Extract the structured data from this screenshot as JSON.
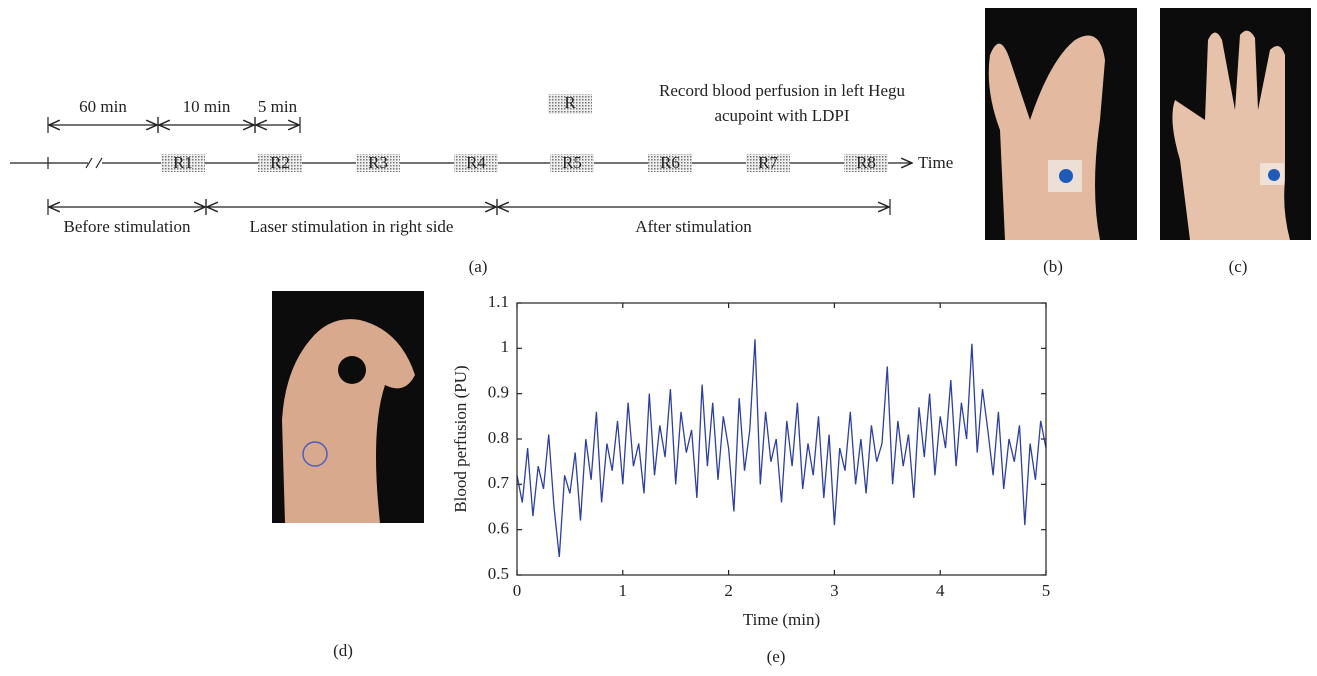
{
  "diagram": {
    "durations": [
      "60 min",
      "10 min",
      "5 min"
    ],
    "markers": [
      "R1",
      "R2",
      "R3",
      "R4",
      "R5",
      "R6",
      "R7",
      "R8"
    ],
    "time_label": "Time",
    "legend": {
      "symbol": "R",
      "text": [
        "Record blood perfusion in left Hegu",
        "acupoint with LDPI"
      ]
    },
    "phases": [
      "Before stimulation",
      "Laser stimulation in right side",
      "After stimulation"
    ]
  },
  "panel_labels": [
    "(a)",
    "(b)",
    "(c)",
    "(d)",
    "(e)"
  ],
  "chart_data": {
    "type": "line",
    "xlabel": "Time (min)",
    "ylabel": "Blood perfusion (PU)",
    "color": "#2e3f9e",
    "xlim": [
      0,
      5
    ],
    "ylim": [
      0.5,
      1.1
    ],
    "xticks": [
      0,
      1,
      2,
      3,
      4,
      5
    ],
    "yticks": [
      0.5,
      0.6,
      0.7,
      0.8,
      0.9,
      1,
      1.1
    ],
    "x": [
      0,
      0.05,
      0.1,
      0.15,
      0.2,
      0.25,
      0.3,
      0.35,
      0.4,
      0.45,
      0.5,
      0.55,
      0.6,
      0.65,
      0.7,
      0.75,
      0.8,
      0.85,
      0.9,
      0.95,
      1,
      1.05,
      1.1,
      1.15,
      1.2,
      1.25,
      1.3,
      1.35,
      1.4,
      1.45,
      1.5,
      1.55,
      1.6,
      1.65,
      1.7,
      1.75,
      1.8,
      1.85,
      1.9,
      1.95,
      2,
      2.05,
      2.1,
      2.15,
      2.2,
      2.25,
      2.3,
      2.35,
      2.4,
      2.45,
      2.5,
      2.55,
      2.6,
      2.65,
      2.7,
      2.75,
      2.8,
      2.85,
      2.9,
      2.95,
      3,
      3.05,
      3.1,
      3.15,
      3.2,
      3.25,
      3.3,
      3.35,
      3.4,
      3.45,
      3.5,
      3.55,
      3.6,
      3.65,
      3.7,
      3.75,
      3.8,
      3.85,
      3.9,
      3.95,
      4,
      4.05,
      4.1,
      4.15,
      4.2,
      4.25,
      4.3,
      4.35,
      4.4,
      4.45,
      4.5,
      4.55,
      4.6,
      4.65,
      4.7,
      4.75,
      4.8,
      4.85,
      4.9,
      4.95,
      5
    ],
    "values": [
      0.72,
      0.66,
      0.78,
      0.63,
      0.74,
      0.69,
      0.81,
      0.65,
      0.54,
      0.72,
      0.68,
      0.77,
      0.62,
      0.8,
      0.71,
      0.86,
      0.66,
      0.79,
      0.73,
      0.84,
      0.7,
      0.88,
      0.74,
      0.79,
      0.68,
      0.9,
      0.72,
      0.83,
      0.76,
      0.91,
      0.7,
      0.86,
      0.77,
      0.82,
      0.67,
      0.92,
      0.74,
      0.88,
      0.71,
      0.85,
      0.78,
      0.64,
      0.89,
      0.73,
      0.82,
      1.02,
      0.7,
      0.86,
      0.75,
      0.8,
      0.66,
      0.84,
      0.74,
      0.88,
      0.69,
      0.79,
      0.72,
      0.85,
      0.67,
      0.81,
      0.61,
      0.78,
      0.73,
      0.86,
      0.7,
      0.8,
      0.68,
      0.83,
      0.75,
      0.79,
      0.96,
      0.7,
      0.84,
      0.74,
      0.81,
      0.67,
      0.87,
      0.76,
      0.9,
      0.72,
      0.85,
      0.78,
      0.93,
      0.74,
      0.88,
      0.8,
      1.01,
      0.77,
      0.91,
      0.82,
      0.72,
      0.86,
      0.69,
      0.8,
      0.75,
      0.83,
      0.61,
      0.79,
      0.71,
      0.84,
      0.78
    ]
  }
}
